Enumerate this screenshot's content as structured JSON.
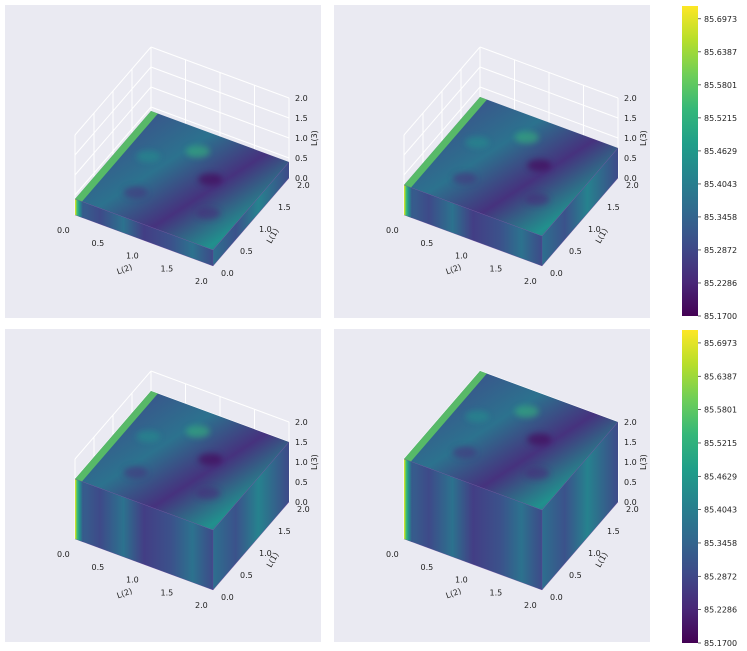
{
  "colors": {
    "panel_bg": "#eaeaf2",
    "grid": "#ffffff",
    "box_edge": "#6b4a9a",
    "text": "#222222"
  },
  "colormap": "viridis",
  "chart_data": [
    {
      "type": "heatmap",
      "variant": "3d-box",
      "z_extent": [
        0,
        0.4
      ],
      "x_ticks": [
        "0.0",
        "0.5",
        "1.0",
        "1.5",
        "2.0"
      ],
      "y_ticks": [
        "0.0",
        "0.5",
        "1.0",
        "1.5",
        "2.0"
      ],
      "z_ticks": [
        "0.0",
        "0.5",
        "1.0",
        "1.5",
        "2.0"
      ],
      "xlabel": "L(2)",
      "ylabel": "L(1)",
      "zlabel": "L(3)",
      "xlim": [
        0,
        2
      ],
      "ylim": [
        0,
        2
      ],
      "zlim": [
        0,
        2
      ]
    },
    {
      "type": "heatmap",
      "variant": "3d-box",
      "z_extent": [
        0,
        0.75
      ],
      "x_ticks": [
        "0.0",
        "0.5",
        "1.0",
        "1.5",
        "2.0"
      ],
      "y_ticks": [
        "0.0",
        "0.5",
        "1.0",
        "1.5",
        "2.0"
      ],
      "z_ticks": [
        "0.0",
        "0.5",
        "1.0",
        "1.5",
        "2.0"
      ],
      "xlabel": "L(2)",
      "ylabel": "L(1)",
      "zlabel": "L(3)",
      "xlim": [
        0,
        2
      ],
      "ylim": [
        0,
        2
      ],
      "zlim": [
        0,
        2
      ]
    },
    {
      "type": "heatmap",
      "variant": "3d-box",
      "z_extent": [
        0,
        1.5
      ],
      "x_ticks": [
        "0.0",
        "0.5",
        "1.0",
        "1.5",
        "2.0"
      ],
      "y_ticks": [
        "0.0",
        "0.5",
        "1.0",
        "1.5",
        "2.0"
      ],
      "z_ticks": [
        "0.0",
        "0.5",
        "1.0",
        "1.5",
        "2.0"
      ],
      "xlabel": "L(2)",
      "ylabel": "L(1)",
      "zlabel": "L(3)",
      "xlim": [
        0,
        2
      ],
      "ylim": [
        0,
        2
      ],
      "zlim": [
        0,
        2
      ]
    },
    {
      "type": "heatmap",
      "variant": "3d-box",
      "z_extent": [
        0,
        2.0
      ],
      "x_ticks": [
        "0.0",
        "0.5",
        "1.0",
        "1.5",
        "2.0"
      ],
      "y_ticks": [
        "0.0",
        "0.5",
        "1.0",
        "1.5",
        "2.0"
      ],
      "z_ticks": [
        "0.0",
        "0.5",
        "1.0",
        "1.5",
        "2.0"
      ],
      "xlabel": "L(2)",
      "ylabel": "L(1)",
      "zlabel": "L(3)",
      "xlim": [
        0,
        2
      ],
      "ylim": [
        0,
        2
      ],
      "zlim": [
        0,
        2
      ]
    }
  ],
  "colorbars": [
    {
      "min": 85.17,
      "max": 85.72,
      "ticks": [
        "85.1700",
        "85.2286",
        "85.2872",
        "85.3458",
        "85.4043",
        "85.4629",
        "85.5215",
        "85.5801",
        "85.6387",
        "85.6973"
      ]
    },
    {
      "min": 85.17,
      "max": 85.72,
      "ticks": [
        "85.1700",
        "85.2286",
        "85.2872",
        "85.3458",
        "85.4043",
        "85.4629",
        "85.5215",
        "85.5801",
        "85.6387",
        "85.6973"
      ]
    }
  ]
}
